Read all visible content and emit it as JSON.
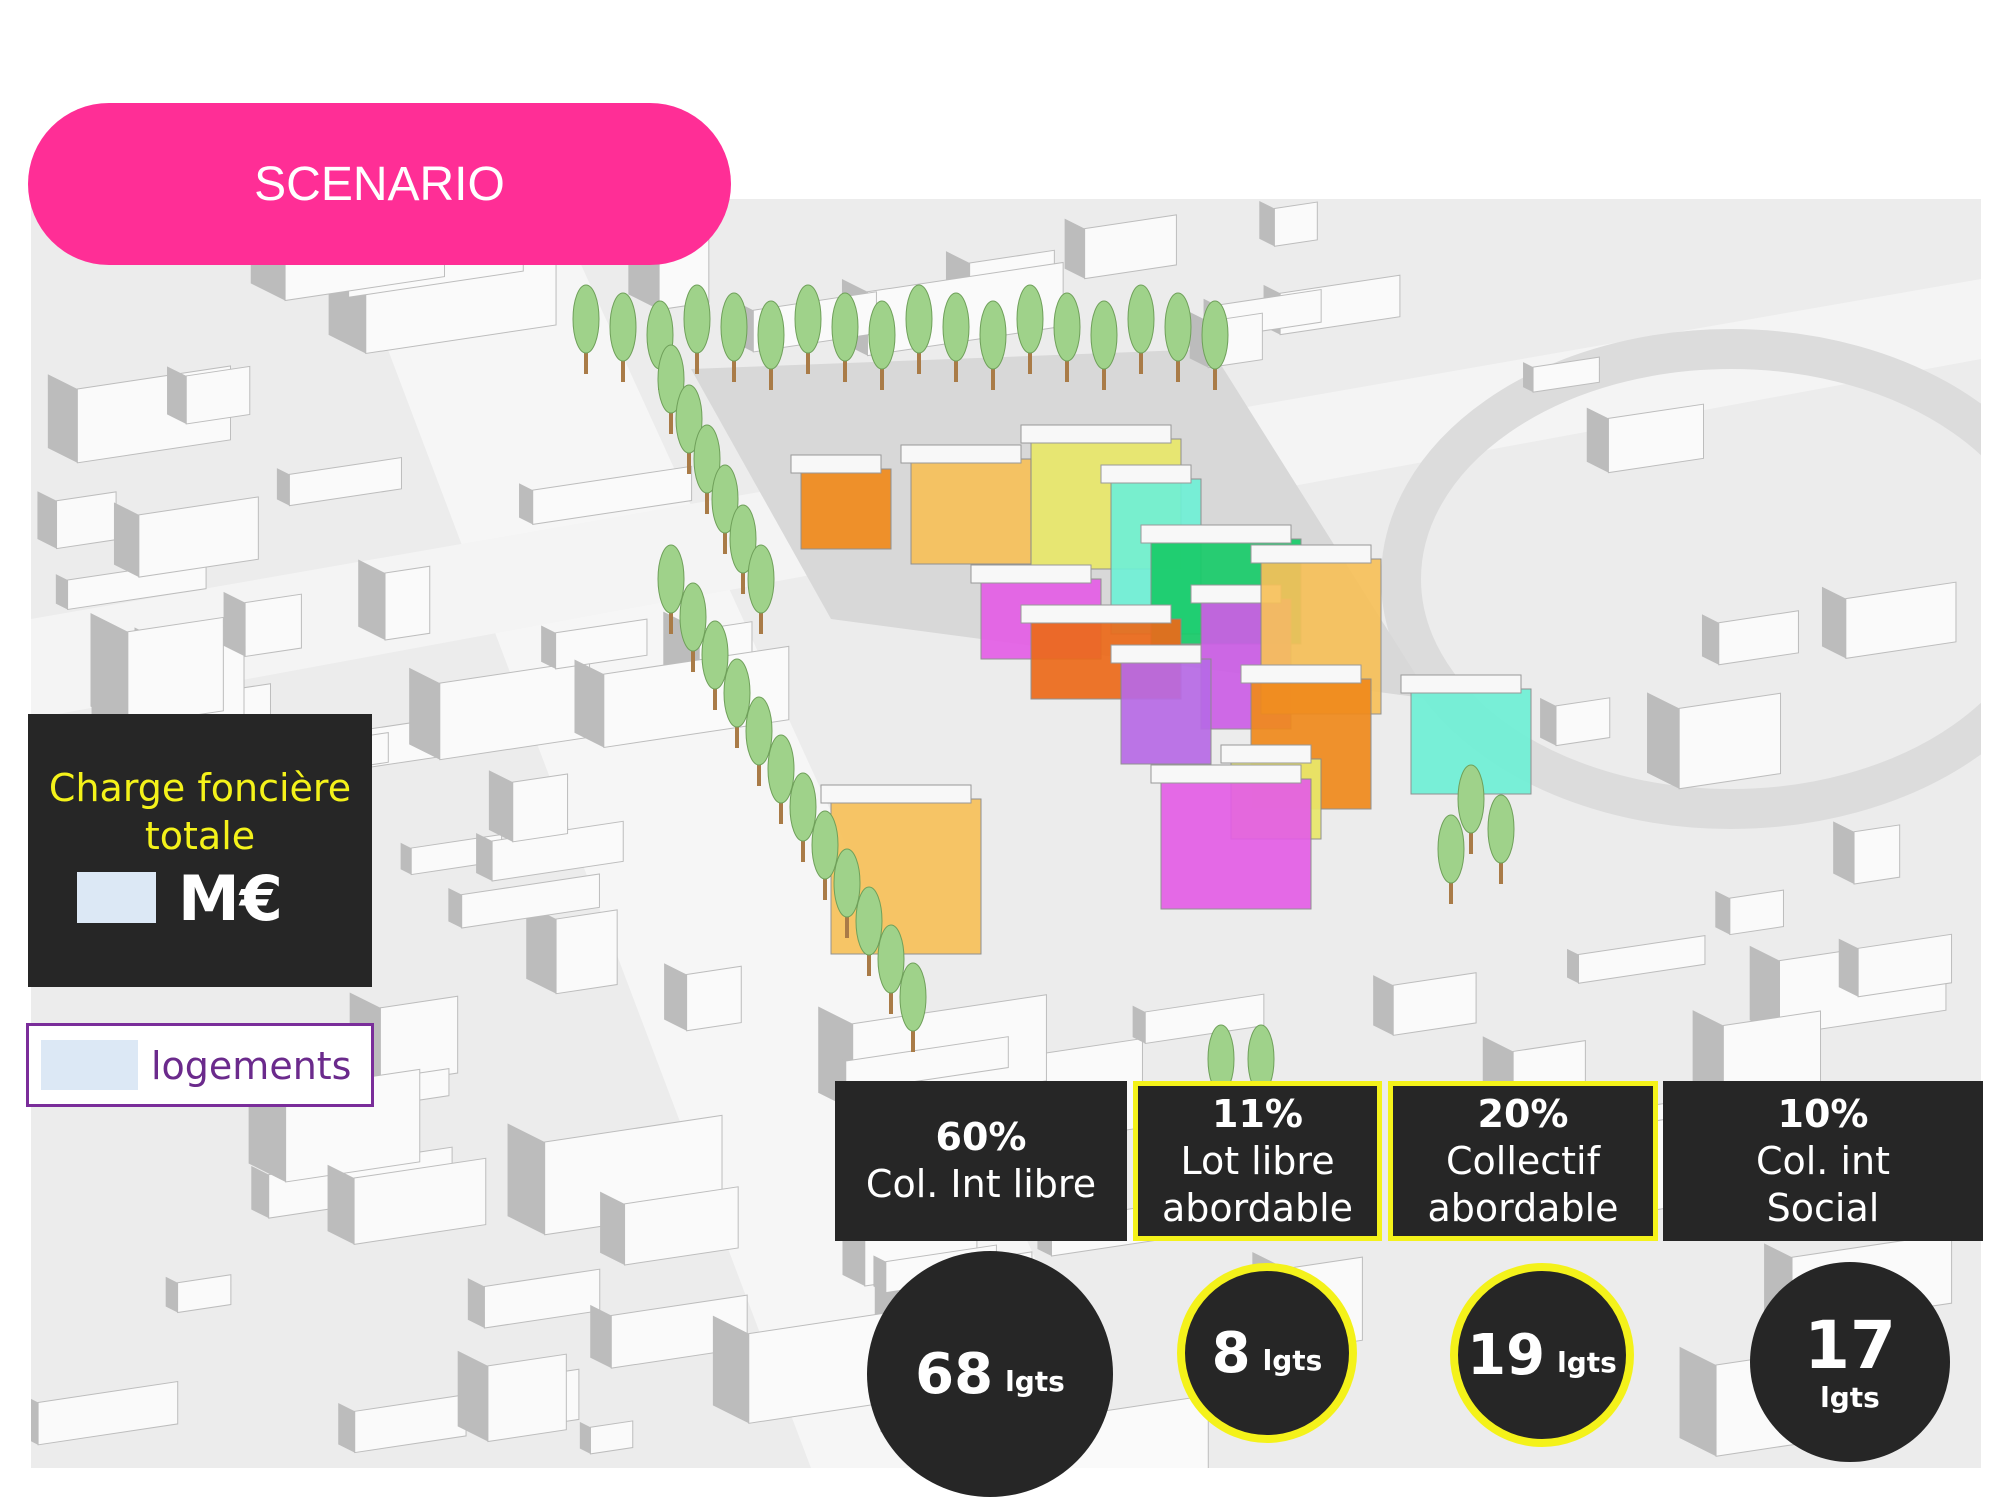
{
  "header": {
    "title": "SCENARIO"
  },
  "charge": {
    "label": "Charge foncière totale",
    "unit": "M€"
  },
  "housing": {
    "label": "logements"
  },
  "categories": [
    {
      "percent": "60%",
      "label": "Col. Int libre",
      "count": "68",
      "unit": "lgts",
      "highlight": false
    },
    {
      "percent": "11%",
      "label": "Lot libre abordable",
      "count": "8",
      "unit": "lgts",
      "highlight": true
    },
    {
      "percent": "20%",
      "label": "Collectif abordable",
      "count": "19",
      "unit": "lgts",
      "highlight": true
    },
    {
      "percent": "10%",
      "label": "Col. int  Social",
      "count": "17",
      "unit": "lgts",
      "highlight": false
    }
  ]
}
